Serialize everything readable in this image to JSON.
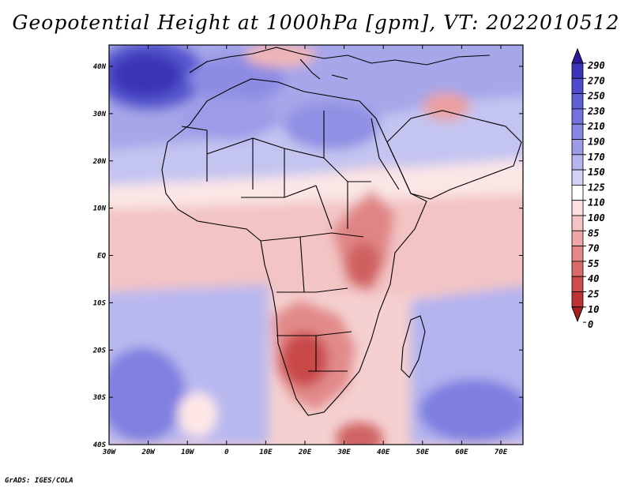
{
  "title": "Geopotential Height at 1000hPa [gpm], VT: 2022010512",
  "credit": "GrADS: IGES/COLA",
  "map": {
    "variable": "Geopotential Height at 1000hPa",
    "units": "gpm",
    "valid_time": "2022010512",
    "region": "Africa",
    "lat_labels": [
      "40N",
      "30N",
      "20N",
      "10N",
      "EQ",
      "10S",
      "20S",
      "30S",
      "40S"
    ],
    "lon_labels": [
      "30W",
      "20W",
      "10W",
      "0",
      "10E",
      "20E",
      "30E",
      "40E",
      "50E",
      "60E",
      "70E"
    ]
  },
  "colorbar": {
    "levels": [
      "290",
      "270",
      "250",
      "230",
      "210",
      "190",
      "170",
      "150",
      "125",
      "110",
      "100",
      "85",
      "70",
      "55",
      "40",
      "25",
      "10",
      "0"
    ],
    "colors": [
      "#2b1b9c",
      "#3a35b8",
      "#4c4ccc",
      "#5f5fd6",
      "#7373dd",
      "#8686e3",
      "#9b9be8",
      "#b4b4ef",
      "#d2d2f6",
      "#ffffff",
      "#fbe0e0",
      "#f6c3c3",
      "#eea6a6",
      "#e48888",
      "#d96a6a",
      "#cc4d4d",
      "#bd3434",
      "#a82020"
    ]
  },
  "colors": {
    "high": "#3a35b8",
    "low": "#b33030"
  }
}
